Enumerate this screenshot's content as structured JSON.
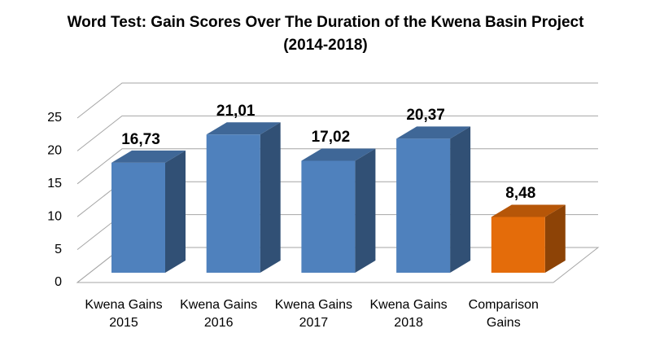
{
  "chart_data": {
    "type": "bar3d",
    "title": "Word Test: Gain Scores Over The Duration of the Kwena Basin Project (2014-2018)",
    "categories": [
      "Kwena Gains 2015",
      "Kwena Gains 2016",
      "Kwena Gains 2017",
      "Kwena Gains 2018",
      "Comparison Gains"
    ],
    "values": [
      16.73,
      21.01,
      17.02,
      20.37,
      8.48
    ],
    "value_labels": [
      "16,73",
      "21,01",
      "17,02",
      "20,37",
      "8,48"
    ],
    "colors": [
      "#4f81bd",
      "#4f81bd",
      "#4f81bd",
      "#4f81bd",
      "#e46c0a"
    ],
    "ylim": [
      0,
      25
    ],
    "yticks": [
      0,
      5,
      10,
      15,
      20,
      25
    ],
    "grid": true
  }
}
